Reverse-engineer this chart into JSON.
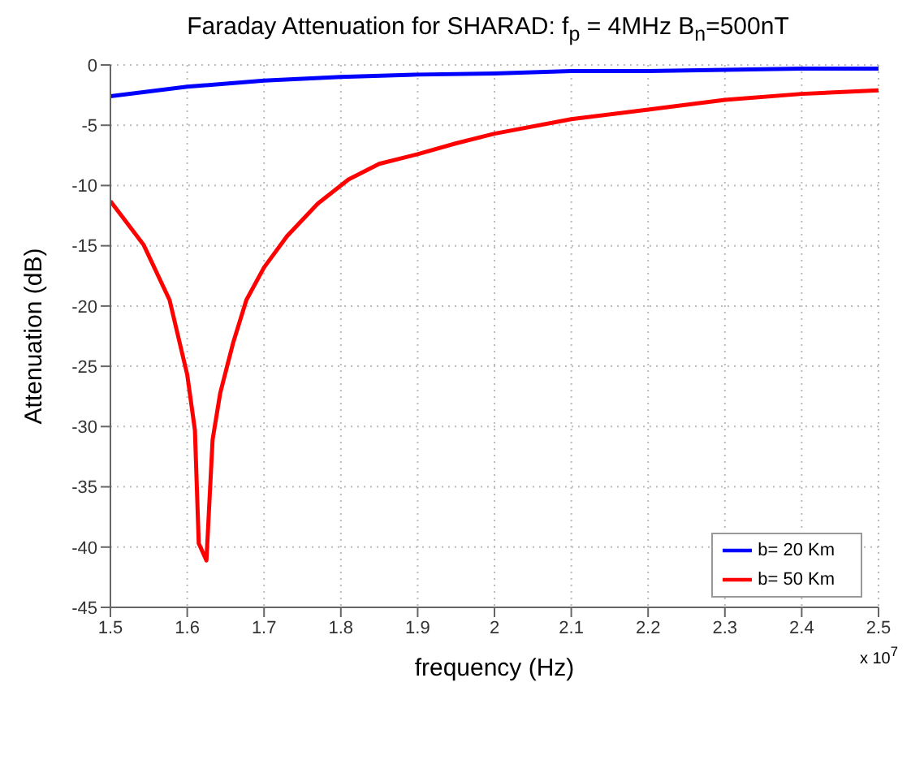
{
  "chart_data": {
    "type": "line",
    "title": "Faraday Attenuation for SHARAD: f$_{p}$ = 4MHz B$_{n}$=500nT",
    "xlabel": "frequency (Hz)",
    "ylabel": "Attenuation  (dB)",
    "annotations": [
      "x 10$^{7}$"
    ],
    "xlim": [
      1.5,
      2.5
    ],
    "xticks": [
      1.5,
      1.6,
      1.7,
      1.8,
      1.9,
      2,
      2.1,
      2.2,
      2.3,
      2.4,
      2.5
    ],
    "ylim": [
      -45,
      0
    ],
    "yticks": [
      -45,
      -40,
      -35,
      -30,
      -25,
      -20,
      -15,
      -10,
      -5,
      0
    ],
    "grid": true,
    "legend": "bottom right",
    "line_style": "solid",
    "marker": "none",
    "series": [
      {
        "name": "b= 20 Km",
        "color": "#0000ff",
        "x": [
          1.5,
          1.6,
          1.7,
          1.8,
          1.9,
          2.0,
          2.1,
          2.2,
          2.3,
          2.4,
          2.5
        ],
        "values": [
          -2.6,
          -1.8,
          -1.3,
          -1.0,
          -0.8,
          -0.7,
          -0.5,
          -0.5,
          -0.4,
          -0.3,
          -0.3
        ]
      },
      {
        "name": "b= 50 Km",
        "color": "#ff0000",
        "x": [
          1.5,
          1.543,
          1.577,
          1.6,
          1.61,
          1.615,
          1.625,
          1.633,
          1.643,
          1.66,
          1.677,
          1.7,
          1.73,
          1.77,
          1.81,
          1.85,
          1.9,
          1.95,
          2.0,
          2.1,
          2.2,
          2.3,
          2.4,
          2.5
        ],
        "values": [
          -11.3,
          -14.9,
          -19.5,
          -25.7,
          -30.3,
          -39.7,
          -41.1,
          -31.1,
          -27.2,
          -23,
          -19.5,
          -16.8,
          -14.2,
          -11.5,
          -9.5,
          -8.2,
          -7.4,
          -6.5,
          -5.7,
          -4.5,
          -3.7,
          -2.9,
          -2.4,
          -2.1
        ]
      }
    ]
  }
}
